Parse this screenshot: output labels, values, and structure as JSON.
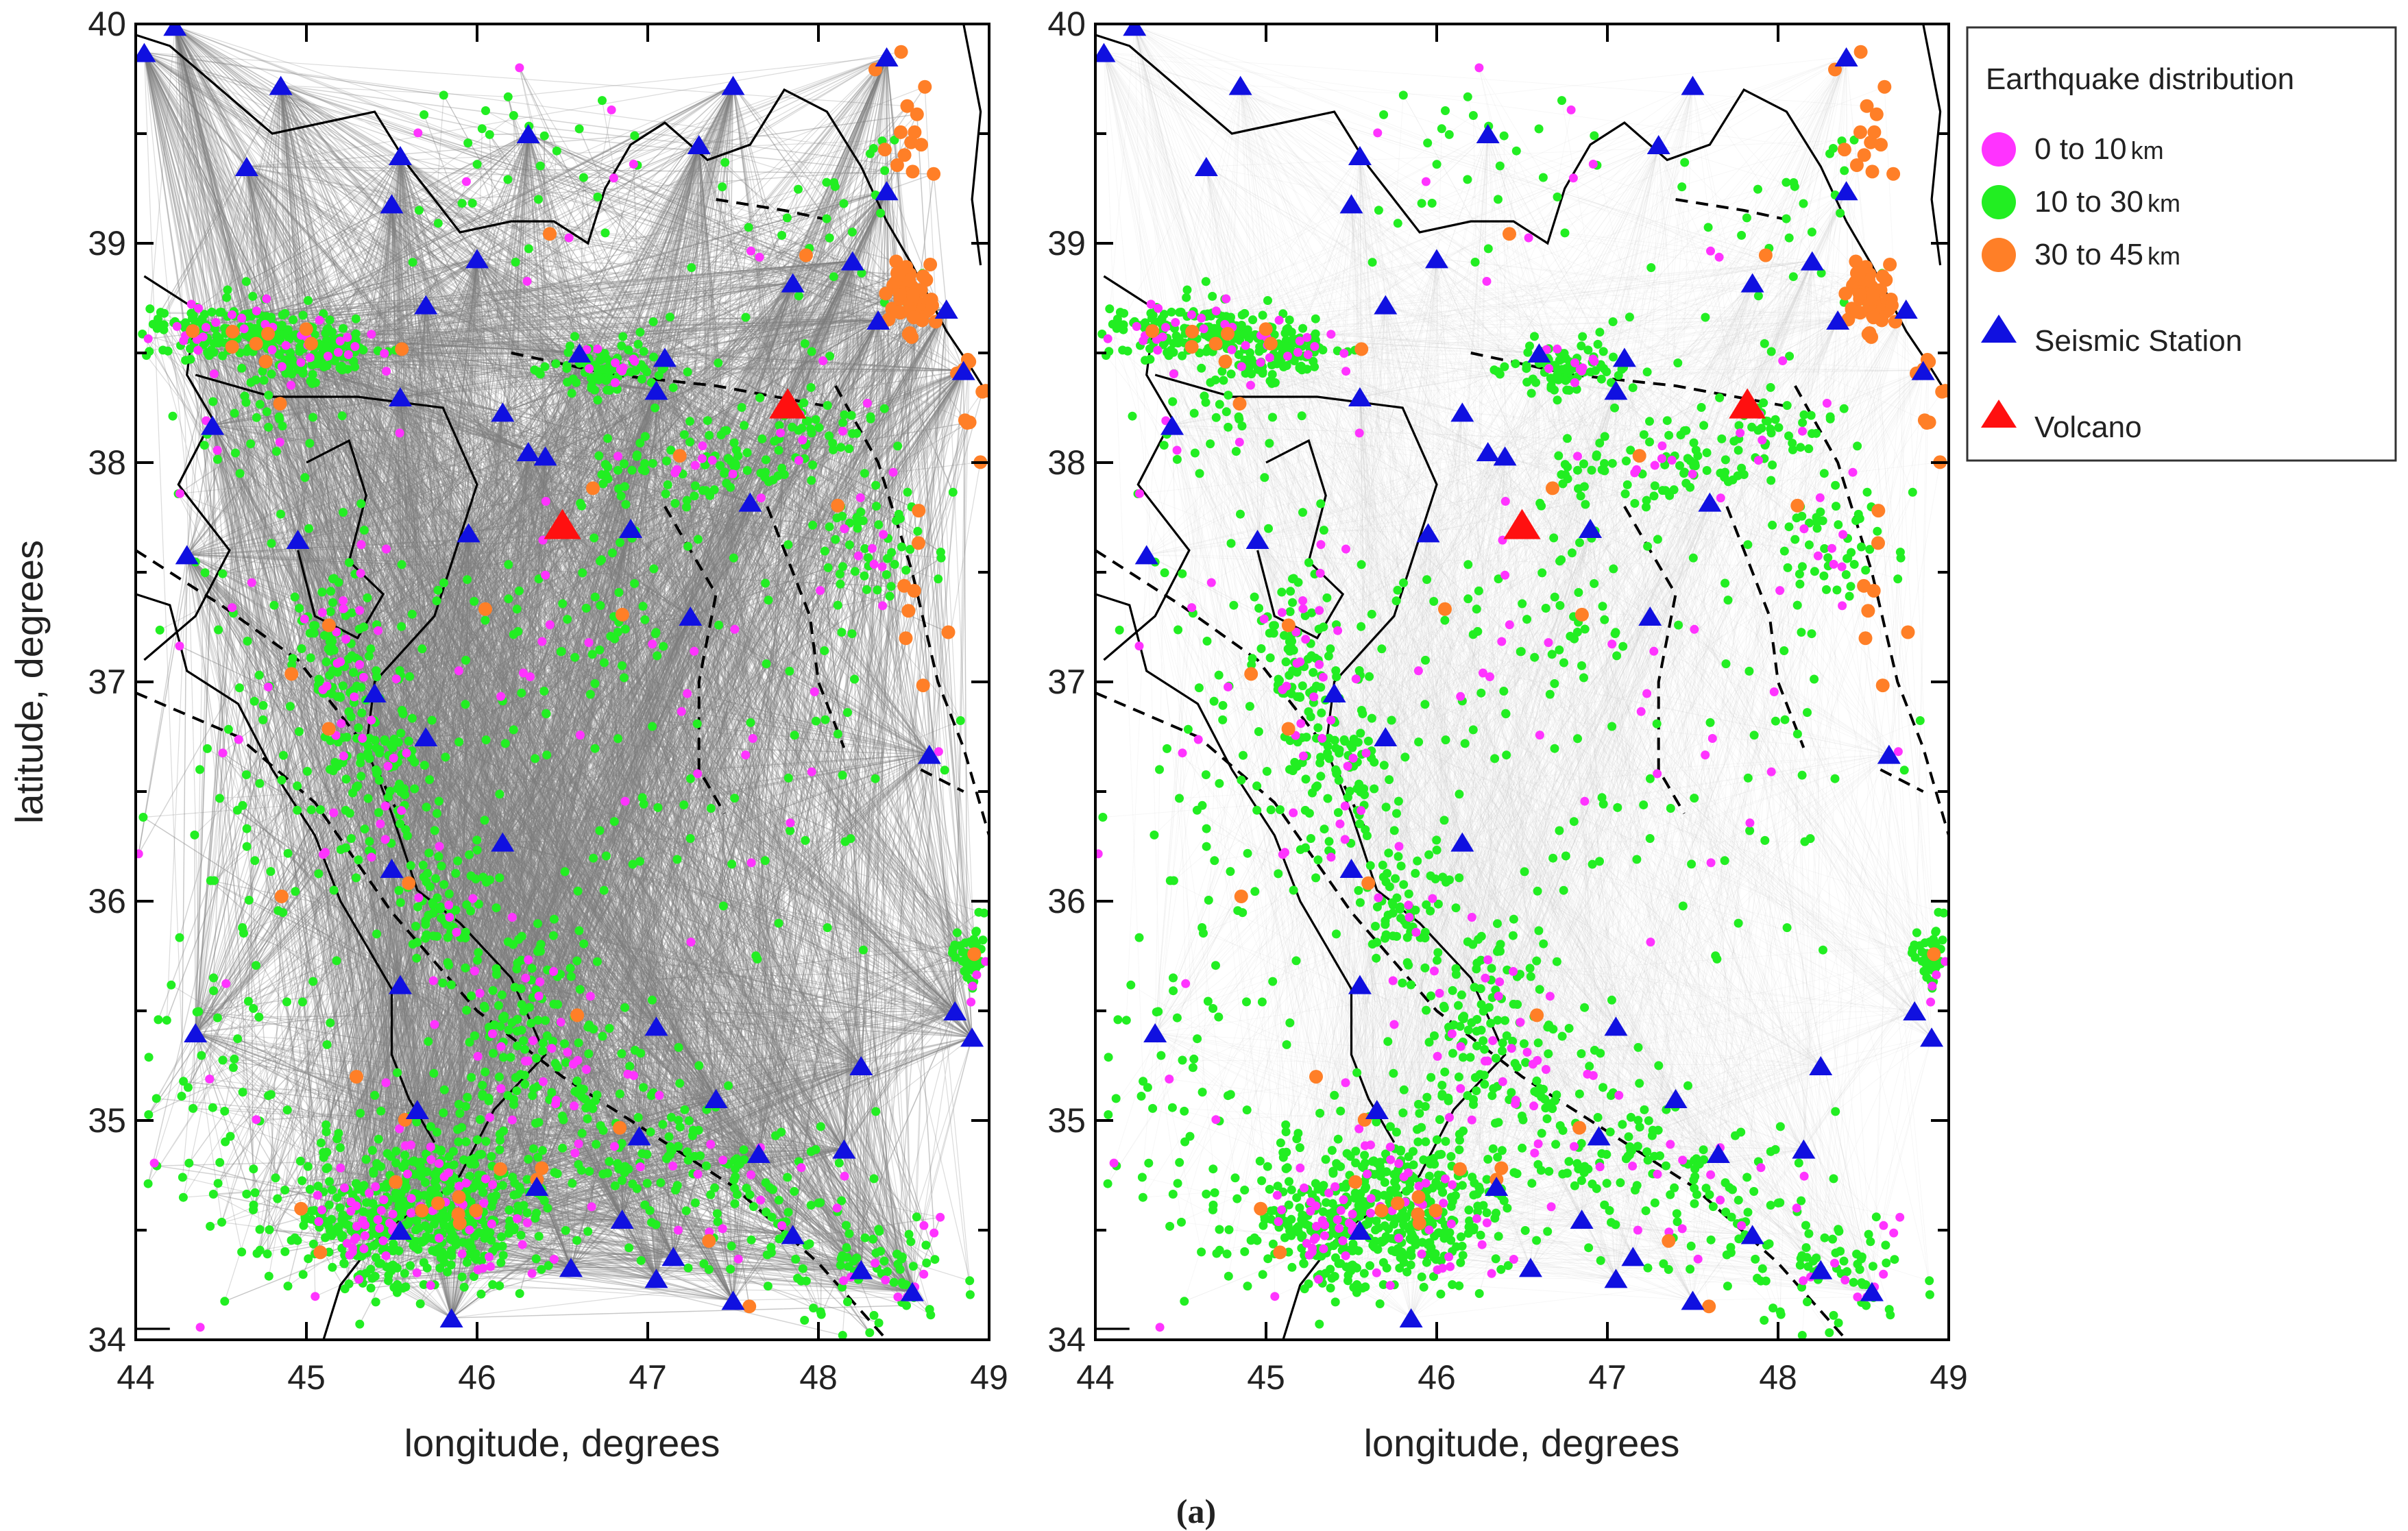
{
  "caption": "(a)",
  "panels": [
    {
      "id": "left",
      "xlabel": "longitude, degrees",
      "ylabel": "latitude, degrees",
      "ray_density": "dense"
    },
    {
      "id": "right",
      "xlabel": "longitude, degrees",
      "ylabel": "",
      "ray_density": "sparse"
    }
  ],
  "axes": {
    "x_range": [
      44,
      49
    ],
    "y_range": [
      34,
      40
    ],
    "x_ticks": [
      "44",
      "45",
      "46",
      "47",
      "48",
      "49"
    ],
    "y_ticks": [
      "34",
      "35",
      "36",
      "37",
      "38",
      "39",
      "40"
    ]
  },
  "legend": {
    "title": "Earthquake distribution",
    "items": [
      {
        "label": "0  to  10",
        "unit": "km",
        "color": "#ff33ff",
        "symbol": "circle"
      },
      {
        "label": "10  to  30",
        "unit": "km",
        "color": "#22ee22",
        "symbol": "circle"
      },
      {
        "label": "30  to  45",
        "unit": "km",
        "color": "#ff7f27",
        "symbol": "circle"
      },
      {
        "label": "Seismic Station",
        "unit": "",
        "color": "#1010e0",
        "symbol": "triangle"
      },
      {
        "label": "Volcano",
        "unit": "",
        "color": "#ff1010",
        "symbol": "triangle"
      }
    ]
  },
  "colors": {
    "ray": "#7a7a7a",
    "coast": "#000000",
    "fault": "#000000"
  },
  "stations": [
    [
      44.05,
      39.87
    ],
    [
      44.23,
      39.99
    ],
    [
      44.85,
      39.72
    ],
    [
      45.55,
      39.4
    ],
    [
      44.65,
      39.35
    ],
    [
      45.5,
      39.18
    ],
    [
      46.3,
      39.5
    ],
    [
      46.0,
      38.93
    ],
    [
      47.3,
      39.45
    ],
    [
      47.5,
      39.72
    ],
    [
      48.4,
      39.85
    ],
    [
      48.4,
      39.24
    ],
    [
      48.2,
      38.92
    ],
    [
      47.85,
      38.82
    ],
    [
      48.35,
      38.65
    ],
    [
      48.75,
      38.7
    ],
    [
      48.85,
      38.42
    ],
    [
      45.7,
      38.72
    ],
    [
      46.6,
      38.5
    ],
    [
      47.1,
      38.48
    ],
    [
      47.05,
      38.33
    ],
    [
      45.55,
      38.3
    ],
    [
      46.15,
      38.23
    ],
    [
      46.3,
      38.05
    ],
    [
      46.4,
      38.03
    ],
    [
      44.45,
      38.17
    ],
    [
      44.3,
      37.58
    ],
    [
      44.95,
      37.65
    ],
    [
      45.95,
      37.68
    ],
    [
      46.9,
      37.7
    ],
    [
      47.6,
      37.82
    ],
    [
      47.25,
      37.3
    ],
    [
      45.4,
      36.95
    ],
    [
      45.7,
      36.75
    ],
    [
      46.15,
      36.27
    ],
    [
      45.5,
      36.15
    ],
    [
      48.65,
      36.67
    ],
    [
      44.35,
      35.4
    ],
    [
      45.55,
      35.62
    ],
    [
      47.05,
      35.43
    ],
    [
      48.8,
      35.5
    ],
    [
      48.9,
      35.38
    ],
    [
      48.25,
      35.25
    ],
    [
      45.65,
      35.05
    ],
    [
      47.4,
      35.1
    ],
    [
      46.95,
      34.93
    ],
    [
      47.65,
      34.85
    ],
    [
      48.15,
      34.87
    ],
    [
      45.55,
      34.5
    ],
    [
      46.35,
      34.7
    ],
    [
      46.85,
      34.55
    ],
    [
      47.05,
      34.28
    ],
    [
      47.15,
      34.38
    ],
    [
      46.55,
      34.33
    ],
    [
      45.85,
      34.1
    ],
    [
      47.5,
      34.18
    ],
    [
      48.25,
      34.32
    ],
    [
      48.55,
      34.22
    ],
    [
      47.85,
      34.48
    ]
  ],
  "volcanoes": [
    [
      46.5,
      37.72
    ],
    [
      47.82,
      38.27
    ]
  ],
  "clusters": [
    [
      44.55,
      38.6,
      0.45,
      0.12,
      170
    ],
    [
      45.05,
      38.5,
      0.35,
      0.1,
      130
    ],
    [
      46.8,
      38.42,
      0.3,
      0.1,
      90
    ],
    [
      47.2,
      38.0,
      0.5,
      0.25,
      90
    ],
    [
      47.95,
      38.1,
      0.3,
      0.15,
      45
    ],
    [
      48.3,
      37.65,
      0.4,
      0.3,
      60
    ],
    [
      45.2,
      37.1,
      0.2,
      0.35,
      90
    ],
    [
      45.4,
      36.6,
      0.25,
      0.35,
      90
    ],
    [
      45.8,
      36.0,
      0.3,
      0.3,
      80
    ],
    [
      46.3,
      35.6,
      0.35,
      0.3,
      80
    ],
    [
      46.3,
      35.2,
      0.6,
      0.2,
      90
    ],
    [
      45.8,
      34.6,
      0.55,
      0.3,
      420
    ],
    [
      45.3,
      34.5,
      0.3,
      0.25,
      140
    ],
    [
      46.9,
      34.9,
      0.5,
      0.3,
      90
    ],
    [
      47.7,
      34.6,
      0.45,
      0.35,
      90
    ],
    [
      48.35,
      34.3,
      0.4,
      0.25,
      70
    ],
    [
      48.9,
      35.75,
      0.08,
      0.12,
      50
    ],
    [
      44.7,
      38.15,
      0.5,
      0.3,
      40
    ],
    [
      46.0,
      37.1,
      0.9,
      0.6,
      70
    ],
    [
      44.7,
      36.5,
      0.6,
      1.2,
      90
    ],
    [
      47.9,
      38.9,
      0.6,
      0.5,
      40
    ],
    [
      46.3,
      39.3,
      0.8,
      0.5,
      40
    ],
    [
      47.8,
      36.8,
      0.8,
      0.8,
      45
    ],
    [
      44.6,
      34.9,
      0.5,
      0.6,
      60
    ],
    [
      47.2,
      36.3,
      1.0,
      0.6,
      30
    ],
    [
      46.7,
      37.4,
      0.4,
      0.3,
      40
    ]
  ],
  "deep_clusters": [
    [
      48.55,
      38.75,
      0.12,
      0.15,
      55
    ],
    [
      48.5,
      39.6,
      0.15,
      0.25,
      14
    ],
    [
      48.9,
      38.2,
      0.1,
      0.4,
      10
    ],
    [
      48.6,
      37.3,
      0.15,
      0.4,
      8
    ],
    [
      45.85,
      34.6,
      0.1,
      0.1,
      4
    ]
  ],
  "coastlines": [
    [
      [
        44.0,
        39.95
      ],
      [
        44.2,
        39.9
      ],
      [
        44.5,
        39.7
      ],
      [
        44.8,
        39.5
      ],
      [
        45.1,
        39.55
      ],
      [
        45.4,
        39.6
      ],
      [
        45.6,
        39.35
      ],
      [
        45.9,
        39.05
      ],
      [
        46.2,
        39.1
      ],
      [
        46.45,
        39.1
      ],
      [
        46.65,
        39.0
      ],
      [
        46.75,
        39.25
      ],
      [
        46.9,
        39.45
      ],
      [
        47.1,
        39.55
      ],
      [
        47.35,
        39.38
      ],
      [
        47.6,
        39.45
      ],
      [
        47.8,
        39.7
      ],
      [
        48.05,
        39.6
      ],
      [
        48.25,
        39.35
      ],
      [
        48.4,
        39.1
      ]
    ],
    [
      [
        48.4,
        39.1
      ],
      [
        48.55,
        38.9
      ],
      [
        48.75,
        38.6
      ],
      [
        48.88,
        38.45
      ],
      [
        49.0,
        38.3
      ]
    ],
    [
      [
        44.05,
        38.85
      ],
      [
        44.35,
        38.7
      ],
      [
        44.3,
        38.4
      ],
      [
        44.45,
        38.2
      ],
      [
        44.25,
        37.9
      ],
      [
        44.55,
        37.6
      ],
      [
        44.35,
        37.3
      ],
      [
        44.05,
        37.1
      ]
    ],
    [
      [
        44.35,
        38.4
      ],
      [
        44.8,
        38.3
      ],
      [
        45.3,
        38.3
      ],
      [
        45.8,
        38.25
      ],
      [
        46.0,
        37.9
      ],
      [
        45.75,
        37.3
      ],
      [
        45.4,
        37.0
      ],
      [
        45.35,
        36.7
      ],
      [
        45.5,
        36.4
      ],
      [
        45.65,
        36.05
      ],
      [
        45.9,
        35.9
      ],
      [
        46.2,
        35.65
      ],
      [
        46.4,
        35.3
      ],
      [
        46.1,
        35.05
      ],
      [
        45.9,
        34.75
      ],
      [
        45.7,
        34.6
      ],
      [
        45.55,
        34.55
      ],
      [
        45.4,
        34.45
      ],
      [
        45.2,
        34.25
      ],
      [
        45.1,
        34.0
      ]
    ],
    [
      [
        44.0,
        37.4
      ],
      [
        44.2,
        37.35
      ],
      [
        44.3,
        37.05
      ],
      [
        44.6,
        36.9
      ],
      [
        44.8,
        36.6
      ],
      [
        45.05,
        36.3
      ],
      [
        45.2,
        36.0
      ],
      [
        45.35,
        35.8
      ],
      [
        45.5,
        35.6
      ],
      [
        45.5,
        35.3
      ],
      [
        45.6,
        35.1
      ],
      [
        45.75,
        34.9
      ]
    ],
    [
      [
        45.0,
        38.0
      ],
      [
        45.25,
        38.1
      ],
      [
        45.35,
        37.85
      ],
      [
        45.25,
        37.55
      ],
      [
        45.45,
        37.4
      ],
      [
        45.3,
        37.2
      ],
      [
        45.05,
        37.3
      ],
      [
        44.95,
        37.6
      ]
    ],
    [
      [
        48.85,
        40.0
      ],
      [
        48.95,
        39.6
      ],
      [
        48.9,
        39.2
      ],
      [
        48.95,
        38.9
      ]
    ],
    [
      [
        44.0,
        34.05
      ],
      [
        44.2,
        34.05
      ]
    ]
  ],
  "faults": [
    [
      [
        44.0,
        37.6
      ],
      [
        44.5,
        37.35
      ],
      [
        44.95,
        37.1
      ],
      [
        45.35,
        36.7
      ],
      [
        45.6,
        36.3
      ]
    ],
    [
      [
        44.0,
        36.95
      ],
      [
        44.6,
        36.75
      ],
      [
        45.05,
        36.45
      ],
      [
        45.5,
        35.95
      ],
      [
        46.0,
        35.5
      ],
      [
        46.5,
        35.2
      ],
      [
        47.0,
        34.95
      ],
      [
        47.5,
        34.7
      ],
      [
        48.0,
        34.35
      ],
      [
        48.4,
        34.0
      ]
    ],
    [
      [
        46.2,
        38.5
      ],
      [
        46.8,
        38.4
      ],
      [
        47.4,
        38.35
      ],
      [
        48.1,
        38.25
      ]
    ],
    [
      [
        47.1,
        37.8
      ],
      [
        47.4,
        37.4
      ],
      [
        47.3,
        37.0
      ],
      [
        47.3,
        36.6
      ],
      [
        47.45,
        36.4
      ]
    ],
    [
      [
        47.7,
        37.8
      ],
      [
        47.95,
        37.3
      ],
      [
        48.0,
        37.0
      ],
      [
        48.15,
        36.7
      ]
    ],
    [
      [
        48.1,
        38.35
      ],
      [
        48.35,
        38.0
      ],
      [
        48.55,
        37.5
      ],
      [
        48.7,
        37.0
      ],
      [
        48.85,
        36.7
      ],
      [
        49.0,
        36.3
      ]
    ],
    [
      [
        47.4,
        39.2
      ],
      [
        47.8,
        39.15
      ],
      [
        48.1,
        39.1
      ]
    ],
    [
      [
        48.6,
        36.6
      ],
      [
        48.85,
        36.5
      ]
    ]
  ]
}
